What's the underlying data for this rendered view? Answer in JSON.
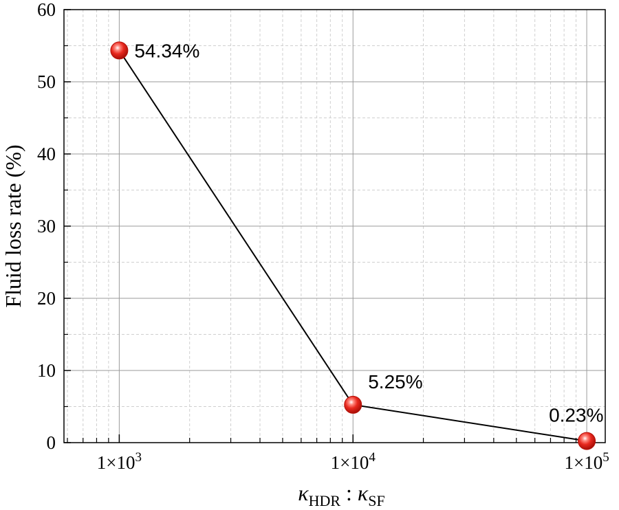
{
  "chart_data": {
    "type": "line",
    "title": "",
    "ylabel": "Fluid loss rate (%)",
    "xlabel": {
      "kappa": "κ",
      "sub1": "HDR",
      "sep": " : ",
      "sub2": "SF"
    },
    "xscale": "log",
    "xlim": [
      580,
      120000
    ],
    "ylim": [
      0,
      60
    ],
    "yticks": [
      0,
      10,
      20,
      30,
      40,
      50,
      60
    ],
    "xticks": [
      {
        "value": 1000,
        "base": "1×10",
        "exp": "3"
      },
      {
        "value": 10000,
        "base": "1×10",
        "exp": "4"
      },
      {
        "value": 100000,
        "base": "1×10",
        "exp": "5"
      }
    ],
    "grid": true,
    "marker_color": "#e8281e",
    "series": [
      {
        "name": "Fluid loss rate",
        "x": [
          1000,
          10000,
          100000
        ],
        "y": [
          54.34,
          5.25,
          0.23
        ],
        "labels": [
          "54.34%",
          "5.25%",
          "0.23%"
        ]
      }
    ]
  }
}
